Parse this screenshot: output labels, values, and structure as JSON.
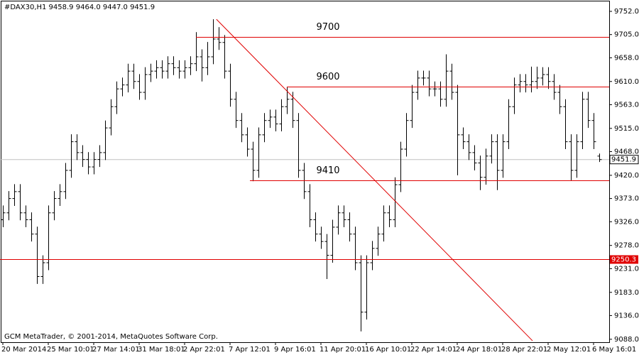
{
  "chart_data": {
    "type": "ohlc",
    "header": "#DAX30,H1  9458.9 9464.0 9447.0 9451.9",
    "footer": "GCM MetaTrader, © 2001-2014, MetaQuotes Software Corp.",
    "color": "#000000",
    "open": [
      9330,
      9344,
      9373,
      9387,
      9344,
      9330,
      9301,
      9215,
      9243,
      9344,
      9373,
      9387,
      9430,
      9488,
      9466,
      9452,
      9437,
      9452,
      9466,
      9516,
      9559,
      9595,
      9603,
      9631,
      9610,
      9588,
      9624,
      9631,
      9638,
      9631,
      9646,
      9638,
      9631,
      9638,
      9646,
      9660,
      9638,
      9660,
      9696,
      9689,
      9631,
      9574,
      9531,
      9502,
      9473,
      9430,
      9502,
      9531,
      9538,
      9524,
      9559,
      9574,
      9531,
      9430,
      9387,
      9330,
      9301,
      9286,
      9258,
      9315,
      9344,
      9330,
      9301,
      9243,
      9143,
      9243,
      9272,
      9301,
      9344,
      9330,
      9401,
      9473,
      9531,
      9588,
      9617,
      9617,
      9595,
      9595,
      9574,
      9631,
      9588,
      9502,
      9488,
      9466,
      9445,
      9416,
      9459,
      9488,
      9430,
      9488,
      9559,
      9603,
      9610,
      9603,
      9610,
      9617,
      9624,
      9610,
      9588,
      9559,
      9488,
      9430,
      9488,
      9574,
      9531,
      9458.9
    ],
    "high": [
      9359,
      9388,
      9402,
      9402,
      9359,
      9345,
      9316,
      9258,
      9359,
      9388,
      9402,
      9445,
      9503,
      9503,
      9481,
      9467,
      9467,
      9481,
      9531,
      9574,
      9610,
      9618,
      9646,
      9646,
      9625,
      9639,
      9646,
      9653,
      9653,
      9661,
      9661,
      9653,
      9653,
      9661,
      9710,
      9675,
      9690,
      9736,
      9720,
      9704,
      9646,
      9589,
      9546,
      9517,
      9488,
      9517,
      9546,
      9553,
      9553,
      9574,
      9598,
      9589,
      9546,
      9445,
      9402,
      9345,
      9316,
      9301,
      9330,
      9359,
      9359,
      9345,
      9316,
      9258,
      9258,
      9287,
      9316,
      9359,
      9359,
      9416,
      9488,
      9546,
      9603,
      9632,
      9632,
      9632,
      9610,
      9610,
      9665,
      9646,
      9603,
      9517,
      9503,
      9481,
      9460,
      9474,
      9503,
      9503,
      9503,
      9574,
      9618,
      9625,
      9625,
      9640,
      9640,
      9639,
      9639,
      9625,
      9603,
      9574,
      9503,
      9503,
      9589,
      9589,
      9546,
      9464.0
    ],
    "low": [
      9315,
      9329,
      9358,
      9329,
      9315,
      9286,
      9200,
      9200,
      9228,
      9329,
      9358,
      9372,
      9415,
      9451,
      9437,
      9422,
      9422,
      9437,
      9451,
      9501,
      9544,
      9580,
      9588,
      9595,
      9573,
      9573,
      9609,
      9616,
      9616,
      9616,
      9623,
      9616,
      9616,
      9623,
      9631,
      9610,
      9623,
      9645,
      9674,
      9616,
      9559,
      9516,
      9487,
      9458,
      9408,
      9415,
      9487,
      9516,
      9509,
      9509,
      9544,
      9516,
      9415,
      9372,
      9315,
      9286,
      9271,
      9210,
      9243,
      9300,
      9315,
      9286,
      9228,
      9104,
      9128,
      9228,
      9257,
      9286,
      9315,
      9315,
      9386,
      9458,
      9516,
      9573,
      9602,
      9580,
      9580,
      9559,
      9559,
      9573,
      9420,
      9473,
      9451,
      9430,
      9390,
      9401,
      9444,
      9390,
      9415,
      9473,
      9544,
      9588,
      9588,
      9588,
      9595,
      9602,
      9595,
      9573,
      9544,
      9473,
      9410,
      9415,
      9473,
      9516,
      9473,
      9447.0
    ],
    "close": [
      9344,
      9373,
      9387,
      9344,
      9330,
      9301,
      9215,
      9243,
      9344,
      9373,
      9387,
      9430,
      9488,
      9466,
      9452,
      9437,
      9452,
      9466,
      9516,
      9559,
      9595,
      9603,
      9631,
      9610,
      9588,
      9624,
      9631,
      9638,
      9631,
      9646,
      9638,
      9631,
      9638,
      9646,
      9660,
      9638,
      9660,
      9696,
      9689,
      9631,
      9574,
      9531,
      9502,
      9473,
      9430,
      9502,
      9531,
      9538,
      9524,
      9559,
      9574,
      9531,
      9430,
      9387,
      9330,
      9301,
      9286,
      9258,
      9315,
      9344,
      9330,
      9301,
      9243,
      9143,
      9243,
      9272,
      9301,
      9344,
      9330,
      9401,
      9473,
      9531,
      9588,
      9617,
      9617,
      9595,
      9595,
      9574,
      9631,
      9588,
      9502,
      9488,
      9466,
      9445,
      9416,
      9459,
      9488,
      9430,
      9488,
      9559,
      9603,
      9610,
      9603,
      9610,
      9617,
      9624,
      9610,
      9588,
      9559,
      9488,
      9430,
      9488,
      9574,
      9531,
      9488,
      9451.9
    ],
    "xlim": [
      -0.5,
      106.75
    ],
    "ylim": [
      9775,
      9082
    ],
    "xticks": [
      {
        "value": 0,
        "label": "20 Mar 2014"
      },
      {
        "value": 8,
        "label": "25 Mar 10:01"
      },
      {
        "value": 16,
        "label": "27 Mar 14:01"
      },
      {
        "value": 24,
        "label": "31 Mar 18:01"
      },
      {
        "value": 32,
        "label": "2 Apr 22:01"
      },
      {
        "value": 40,
        "label": "7 Apr 12:01"
      },
      {
        "value": 48,
        "label": "9 Apr 16:01"
      },
      {
        "value": 56,
        "label": "11 Apr 20:01"
      },
      {
        "value": 64,
        "label": "16 Apr 10:01"
      },
      {
        "value": 72,
        "label": "22 Apr 14:01"
      },
      {
        "value": 80,
        "label": "24 Apr 18:01"
      },
      {
        "value": 88,
        "label": "28 Apr 22:01"
      },
      {
        "value": 96,
        "label": "2 May 12:01"
      },
      {
        "value": 104,
        "label": "6 May 16:01"
      }
    ],
    "yticks": [
      {
        "value": 9752,
        "label": "9752.0"
      },
      {
        "value": 9705,
        "label": "9705.0"
      },
      {
        "value": 9658,
        "label": "9658.0"
      },
      {
        "value": 9610,
        "label": "9610.0"
      },
      {
        "value": 9563,
        "label": "9563.0"
      },
      {
        "value": 9515,
        "label": "9515.0"
      },
      {
        "value": 9468,
        "label": "9468.0"
      },
      {
        "value": 9420,
        "label": "9420.0"
      },
      {
        "value": 9373,
        "label": "9373.0"
      },
      {
        "value": 9326,
        "label": "9326.0"
      },
      {
        "value": 9278,
        "label": "9278.0"
      },
      {
        "value": 9231,
        "label": "9231.0"
      },
      {
        "value": 9183,
        "label": "9183.0"
      },
      {
        "value": 9136,
        "label": "9136.0"
      },
      {
        "value": 9088,
        "label": "9088.0"
      }
    ],
    "levels": [
      {
        "value": 9700,
        "x": 34,
        "color": "#e00000"
      },
      {
        "value": 9600,
        "x": 50,
        "color": "#e00000"
      },
      {
        "value": 9410,
        "x": 43.5,
        "color": "#e00000"
      },
      {
        "value": 9250.3,
        "x": -0.5,
        "color": "#e00000",
        "tag": true
      }
    ],
    "trendline": {
      "x": [
        37.6,
        93.25
      ],
      "y": [
        9736,
        9085
      ],
      "color": "#e00000"
    },
    "price_line_color": "#c0c0c0"
  }
}
